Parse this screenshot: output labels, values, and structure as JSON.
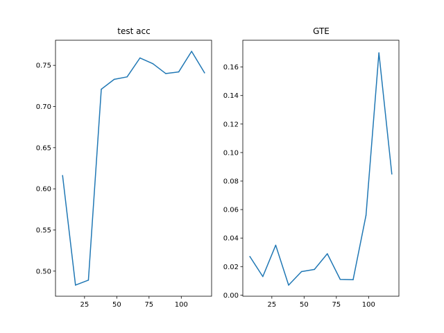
{
  "chart_data": [
    {
      "type": "line",
      "title": "test acc",
      "xlabel": "",
      "ylabel": "",
      "x": [
        8,
        18,
        28,
        38,
        48,
        58,
        68,
        78,
        88,
        98,
        108,
        118
      ],
      "series": [
        {
          "values": [
            0.616,
            0.483,
            0.489,
            0.721,
            0.733,
            0.736,
            0.759,
            0.752,
            0.74,
            0.742,
            0.767,
            0.741
          ],
          "color": "#1f77b4"
        }
      ],
      "xlim": [
        2.5,
        123.5
      ],
      "ylim": [
        0.4695,
        0.7805
      ],
      "xticks": [
        25,
        50,
        75,
        100
      ],
      "xtick_labels": [
        "25",
        "50",
        "75",
        "100"
      ],
      "yticks": [
        0.5,
        0.55,
        0.6,
        0.65,
        0.7,
        0.75
      ],
      "ytick_labels": [
        "0.50",
        "0.55",
        "0.60",
        "0.65",
        "0.70",
        "0.75"
      ],
      "grid": false,
      "legend": "none"
    },
    {
      "type": "line",
      "title": "GTE",
      "xlabel": "",
      "ylabel": "",
      "x": [
        8,
        18,
        28,
        38,
        48,
        58,
        68,
        78,
        88,
        98,
        108,
        118
      ],
      "series": [
        {
          "values": [
            0.027,
            0.013,
            0.035,
            0.007,
            0.0165,
            0.018,
            0.029,
            0.011,
            0.0108,
            0.056,
            0.17,
            0.085
          ],
          "color": "#1f77b4"
        }
      ],
      "xlim": [
        2.5,
        123.5
      ],
      "ylim": [
        -0.0008,
        0.1788
      ],
      "xticks": [
        25,
        50,
        75,
        100
      ],
      "xtick_labels": [
        "25",
        "50",
        "75",
        "100"
      ],
      "yticks": [
        0.0,
        0.02,
        0.04,
        0.06,
        0.08,
        0.1,
        0.12,
        0.14,
        0.16
      ],
      "ytick_labels": [
        "0.00",
        "0.02",
        "0.04",
        "0.06",
        "0.08",
        "0.10",
        "0.12",
        "0.14",
        "0.16"
      ],
      "grid": false,
      "legend": "none"
    }
  ]
}
